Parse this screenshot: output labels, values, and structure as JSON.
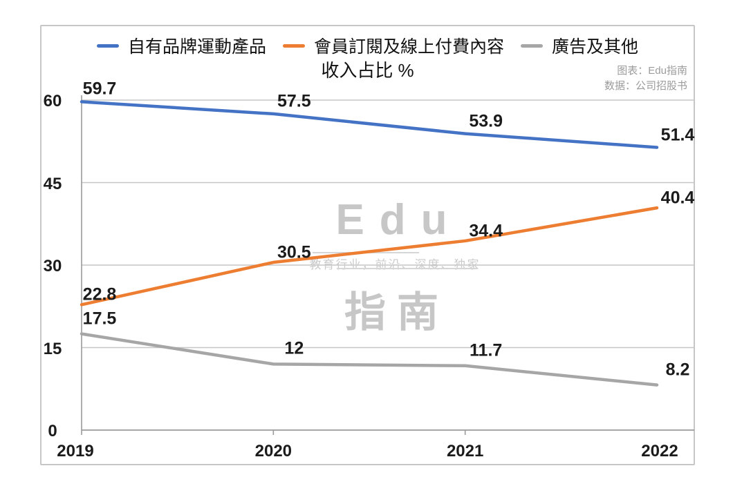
{
  "header": {
    "title": "收入占比 %",
    "source_line1": "图表：Edu指南",
    "source_line2": "数据：公司招股书"
  },
  "legend": [
    {
      "label": "自有品牌運動產品",
      "color": "#4472c4"
    },
    {
      "label": "會員訂閱及線上付費內容",
      "color": "#ed7d31"
    },
    {
      "label": "廣告及其他",
      "color": "#a6a6a6"
    }
  ],
  "watermark": {
    "logo_top": "Edu",
    "tagline": "教育行业，前沿、深度、独家",
    "logo_bottom": "指南"
  },
  "colors": {
    "series_blue": "#4472c4",
    "series_orange": "#ed7d31",
    "series_gray": "#a6a6a6",
    "gridline": "#c6c6c6",
    "axis": "#9a9a9a",
    "border": "#c6c6c6",
    "watermark": "#c7c7c7",
    "source_text": "#9b9b9b"
  },
  "chart_data": {
    "type": "line",
    "title": "收入占比 %",
    "categories": [
      "2019",
      "2020",
      "2021",
      "2022"
    ],
    "series": [
      {
        "name": "自有品牌運動產品",
        "color": "#4472c4",
        "values": [
          59.7,
          57.5,
          53.9,
          51.4
        ]
      },
      {
        "name": "會員訂閱及線上付費內容",
        "color": "#ed7d31",
        "values": [
          22.8,
          30.5,
          34.4,
          40.4
        ]
      },
      {
        "name": "廣告及其他",
        "color": "#a6a6a6",
        "values": [
          17.5,
          12,
          11.7,
          8.2
        ]
      }
    ],
    "xlabel": "",
    "ylabel": "",
    "ylim": [
      0,
      60
    ],
    "yticks": [
      0,
      15,
      30,
      45,
      60
    ],
    "grid": true,
    "legend_position": "top",
    "value_labels_shown": true,
    "source": "图表：Edu指南 数据：公司招股书"
  }
}
